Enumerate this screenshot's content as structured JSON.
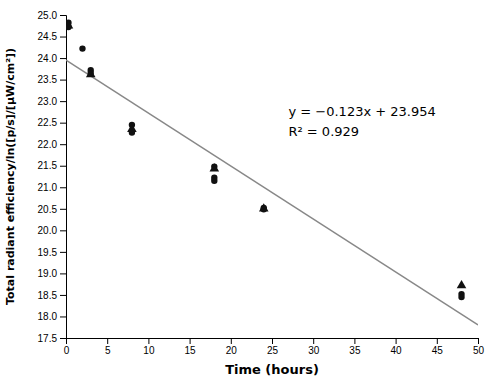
{
  "chart_data": {
    "type": "scatter",
    "x_label": "Time (hours)",
    "y_label": "Total radiant efficiency/ln([p/s]/[μW/cm²])",
    "xlim": [
      0,
      50
    ],
    "ylim": [
      17.5,
      25.0
    ],
    "xticks": [
      0,
      5,
      10,
      15,
      20,
      25,
      30,
      35,
      40,
      45,
      50
    ],
    "yticks": [
      17.5,
      {
        "value": 18,
        "label": "18.0"
      },
      18.5,
      {
        "value": 19,
        "label": "19.0"
      },
      19.5,
      {
        "value": 20,
        "label": "20.0"
      },
      20.5,
      {
        "value": 21,
        "label": "21.0"
      },
      21.5,
      {
        "value": 22,
        "label": "22.0"
      },
      22.5,
      {
        "value": 23,
        "label": "23.0"
      },
      23.5,
      {
        "value": 24,
        "label": "24.0"
      },
      24.5,
      {
        "value": 25,
        "label": "25.0"
      }
    ],
    "grid": false,
    "series": [
      {
        "type": "line",
        "color": "#888888",
        "x": [
          0,
          50
        ],
        "values": [
          23.954,
          17.804
        ]
      },
      {
        "type": "scatter",
        "marker": "circle",
        "color": "#111111",
        "x": [
          0.3,
          0.3,
          2.0,
          3.0,
          3.0,
          8.0,
          8.0,
          18.0,
          18.0,
          18.0,
          24.0,
          24.0,
          48.0,
          48.0
        ],
        "values": [
          24.82,
          24.72,
          24.22,
          23.72,
          23.65,
          22.45,
          22.27,
          21.48,
          21.22,
          21.15,
          20.52,
          20.49,
          18.52,
          18.45
        ]
      },
      {
        "type": "scatter",
        "marker": "triangle",
        "color": "#111111",
        "x": [
          0.3,
          3.0,
          8.0,
          18.0,
          24.0,
          48.0
        ],
        "values": [
          24.75,
          23.62,
          22.35,
          21.43,
          20.5,
          18.72
        ]
      }
    ],
    "annotations": [
      {
        "lines": [
          "y = −0.123x + 23.954",
          "R² = 0.929"
        ],
        "x": 27,
        "y": 22.5
      }
    ]
  }
}
